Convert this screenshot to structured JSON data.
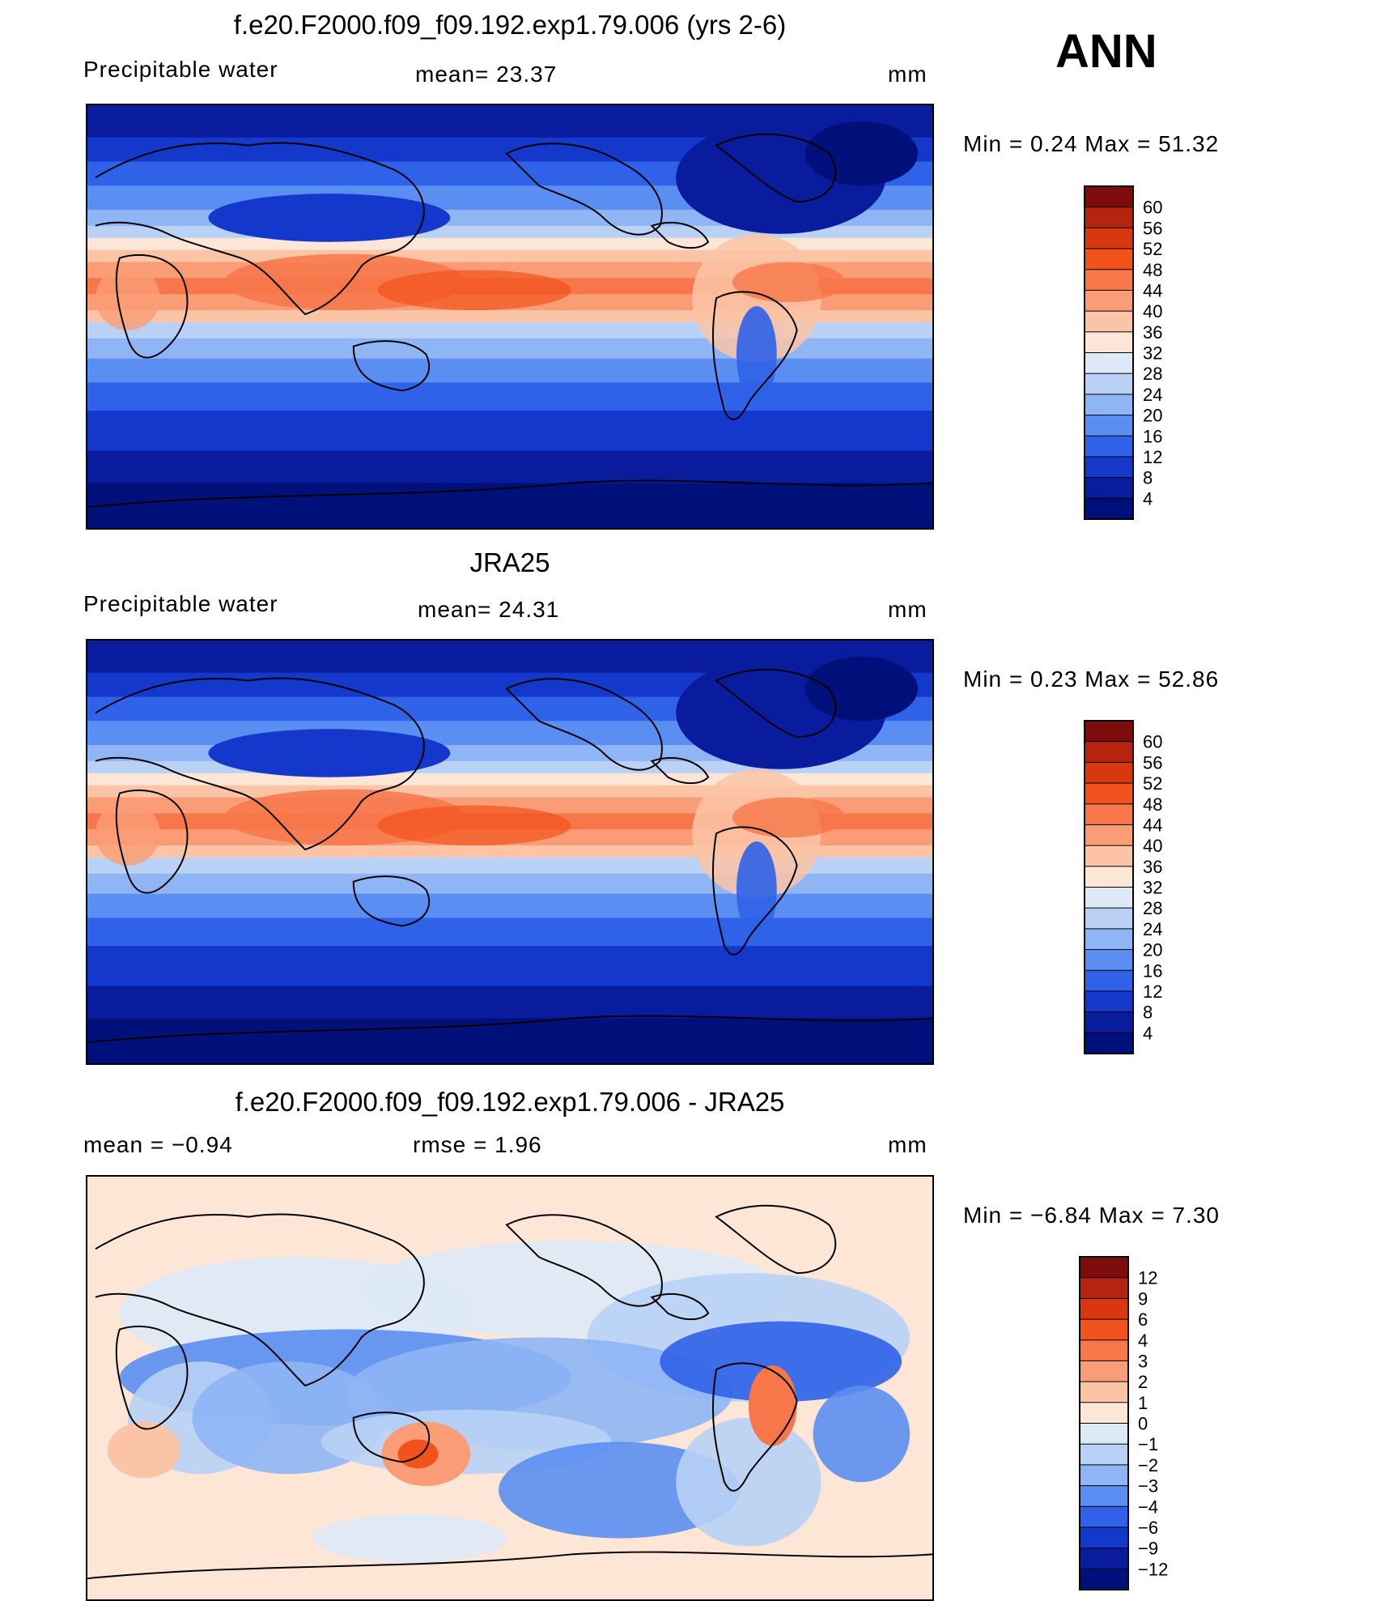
{
  "season": "ANN",
  "units": "mm",
  "panels": [
    {
      "title": "f.e20.F2000.f09_f09.192.exp1.79.006 (yrs 2-6)",
      "variable": "Precipitable  water",
      "stat1": "mean=   23.37",
      "stat2": "",
      "units": "mm",
      "minmax": "Min  =     0.24  Max  =    51.32",
      "colorbar": {
        "labels": [
          "60",
          "56",
          "52",
          "48",
          "44",
          "40",
          "36",
          "32",
          "28",
          "24",
          "20",
          "16",
          "12",
          "8",
          "4"
        ],
        "colors": [
          "#7f0c0c",
          "#b5240f",
          "#d9380f",
          "#f2531c",
          "#f7774a",
          "#fa9d77",
          "#fbc4a6",
          "#fde6d5",
          "#dde9f7",
          "#b8d1f5",
          "#8fb5f5",
          "#5b8ef2",
          "#2f62e8",
          "#1438cc",
          "#0a1c9e",
          "#00107a"
        ]
      },
      "fields": {
        "min": 0.24,
        "max": 51.32
      }
    },
    {
      "title": "JRA25",
      "variable": "Precipitable  water",
      "stat1": "mean=   24.31",
      "stat2": "",
      "units": "mm",
      "minmax": "Min  =     0.23  Max  =    52.86",
      "colorbar": {
        "labels": [
          "60",
          "56",
          "52",
          "48",
          "44",
          "40",
          "36",
          "32",
          "28",
          "24",
          "20",
          "16",
          "12",
          "8",
          "4"
        ],
        "colors": [
          "#7f0c0c",
          "#b5240f",
          "#d9380f",
          "#f2531c",
          "#f7774a",
          "#fa9d77",
          "#fbc4a6",
          "#fde6d5",
          "#dde9f7",
          "#b8d1f5",
          "#8fb5f5",
          "#5b8ef2",
          "#2f62e8",
          "#1438cc",
          "#0a1c9e",
          "#00107a"
        ]
      },
      "fields": {
        "min": 0.23,
        "max": 52.86
      }
    },
    {
      "title": "f.e20.F2000.f09_f09.192.exp1.79.006 - JRA25",
      "variable": "mean  =    −0.94",
      "stat1": "rmse  =     1.96",
      "stat2": "",
      "units": "mm",
      "minmax": "Min  =   −6.84  Max  =     7.30",
      "colorbar": {
        "labels": [
          "12",
          "9",
          "6",
          "4",
          "3",
          "2",
          "1",
          "0",
          "−1",
          "−2",
          "−3",
          "−4",
          "−6",
          "−9",
          "−12"
        ],
        "colors": [
          "#7f0c0c",
          "#b5240f",
          "#d9380f",
          "#f2531c",
          "#f7774a",
          "#fa9d77",
          "#fbc4a6",
          "#fde6d5",
          "#dde9f7",
          "#b8d1f5",
          "#8fb5f5",
          "#5b8ef2",
          "#2f62e8",
          "#1438cc",
          "#0a1c9e",
          "#00107a"
        ]
      },
      "fields": {
        "min": -6.84,
        "max": 7.3
      }
    }
  ]
}
